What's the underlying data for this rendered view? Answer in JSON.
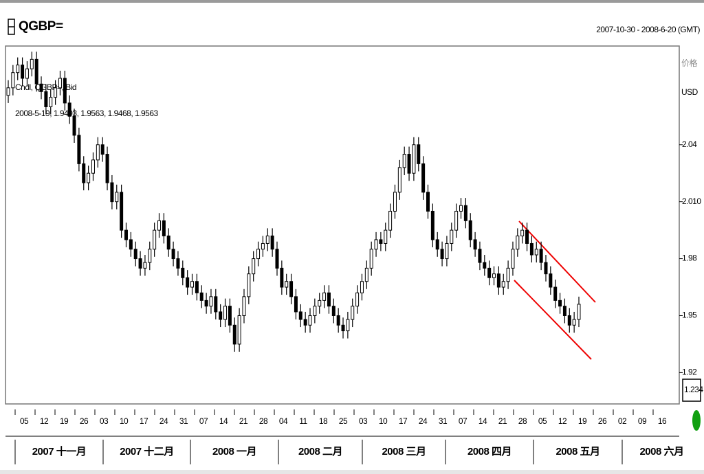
{
  "chart_data": {
    "type": "candlestick",
    "title": "QGBP=",
    "date_range": "2007-10-30 - 2008-6-20 (GMT)",
    "y_axis_label": "价格",
    "y_axis_unit": "USD",
    "scale_box": "1.234",
    "legend": [
      "Cndl, QGBP=, Bid",
      "2008-5-19, 1.9493, 1.9563, 1.9468, 1.9563"
    ],
    "ylim": [
      1.9035,
      2.092
    ],
    "yticks": [
      2.04,
      {
        "value": 2.01,
        "label": "2.010"
      },
      1.98,
      1.95,
      1.92
    ],
    "x_days": [
      "05",
      "12",
      "19",
      "26",
      "03",
      "10",
      "17",
      "24",
      "31",
      "07",
      "14",
      "21",
      "28",
      "04",
      "11",
      "18",
      "25",
      "03",
      "10",
      "17",
      "24",
      "31",
      "07",
      "14",
      "21",
      "28",
      "05",
      "12",
      "19",
      "26",
      "02",
      "09",
      "16"
    ],
    "x_months": [
      "2007 十一月",
      "2007 十二月",
      "2008 一月",
      "2008 二月",
      "2008 三月",
      "2008 四月",
      "2008 五月",
      "2008 六月"
    ],
    "candles": [
      [
        2.066,
        2.074,
        2.062,
        2.07
      ],
      [
        2.07,
        2.082,
        2.066,
        2.078
      ],
      [
        2.078,
        2.086,
        2.074,
        2.082
      ],
      [
        2.082,
        2.086,
        2.071,
        2.075
      ],
      [
        2.075,
        2.084,
        2.071,
        2.08
      ],
      [
        2.08,
        2.089,
        2.076,
        2.085
      ],
      [
        2.085,
        2.089,
        2.068,
        2.072
      ],
      [
        2.072,
        2.076,
        2.064,
        2.068
      ],
      [
        2.068,
        2.072,
        2.056,
        2.06
      ],
      [
        2.06,
        2.069,
        2.056,
        2.065
      ],
      [
        2.065,
        2.074,
        2.061,
        2.07
      ],
      [
        2.07,
        2.079,
        2.066,
        2.075
      ],
      [
        2.075,
        2.079,
        2.058,
        2.062
      ],
      [
        2.062,
        2.066,
        2.051,
        2.055
      ],
      [
        2.055,
        2.059,
        2.041,
        2.045
      ],
      [
        2.045,
        2.049,
        2.026,
        2.03
      ],
      [
        2.03,
        2.034,
        2.016,
        2.02
      ],
      [
        2.02,
        2.029,
        2.016,
        2.025
      ],
      [
        2.025,
        2.036,
        2.021,
        2.032
      ],
      [
        2.032,
        2.044,
        2.028,
        2.04
      ],
      [
        2.04,
        2.044,
        2.031,
        2.035
      ],
      [
        2.035,
        2.039,
        2.016,
        2.02
      ],
      [
        2.02,
        2.024,
        2.006,
        2.01
      ],
      [
        2.01,
        2.019,
        2.006,
        2.015
      ],
      [
        2.015,
        2.019,
        1.991,
        1.995
      ],
      [
        1.995,
        1.999,
        1.986,
        1.99
      ],
      [
        1.99,
        1.994,
        1.981,
        1.985
      ],
      [
        1.985,
        1.989,
        1.976,
        1.98
      ],
      [
        1.98,
        1.984,
        1.971,
        1.975
      ],
      [
        1.975,
        1.982,
        1.971,
        1.978
      ],
      [
        1.978,
        1.989,
        1.974,
        1.985
      ],
      [
        1.985,
        1.999,
        1.981,
        1.995
      ],
      [
        1.995,
        2.004,
        1.991,
        2.0
      ],
      [
        2.0,
        2.004,
        1.988,
        1.992
      ],
      [
        1.992,
        1.996,
        1.981,
        1.985
      ],
      [
        1.985,
        1.989,
        1.976,
        1.98
      ],
      [
        1.98,
        1.984,
        1.971,
        1.975
      ],
      [
        1.975,
        1.979,
        1.966,
        1.97
      ],
      [
        1.97,
        1.974,
        1.961,
        1.965
      ],
      [
        1.965,
        1.972,
        1.961,
        1.968
      ],
      [
        1.968,
        1.972,
        1.958,
        1.962
      ],
      [
        1.962,
        1.966,
        1.954,
        1.958
      ],
      [
        1.958,
        1.962,
        1.951,
        1.955
      ],
      [
        1.955,
        1.964,
        1.951,
        1.96
      ],
      [
        1.96,
        1.964,
        1.948,
        1.952
      ],
      [
        1.952,
        1.956,
        1.944,
        1.948
      ],
      [
        1.948,
        1.959,
        1.944,
        1.955
      ],
      [
        1.955,
        1.959,
        1.941,
        1.945
      ],
      [
        1.945,
        1.949,
        1.931,
        1.935
      ],
      [
        1.935,
        1.954,
        1.931,
        1.95
      ],
      [
        1.95,
        1.964,
        1.946,
        1.96
      ],
      [
        1.96,
        1.976,
        1.956,
        1.972
      ],
      [
        1.972,
        1.984,
        1.968,
        1.98
      ],
      [
        1.98,
        1.989,
        1.976,
        1.985
      ],
      [
        1.985,
        1.992,
        1.981,
        1.988
      ],
      [
        1.988,
        1.996,
        1.984,
        1.992
      ],
      [
        1.992,
        1.996,
        1.981,
        1.985
      ],
      [
        1.985,
        1.989,
        1.971,
        1.975
      ],
      [
        1.975,
        1.979,
        1.961,
        1.965
      ],
      [
        1.965,
        1.972,
        1.961,
        1.968
      ],
      [
        1.968,
        1.972,
        1.956,
        1.96
      ],
      [
        1.96,
        1.964,
        1.948,
        1.952
      ],
      [
        1.952,
        1.956,
        1.944,
        1.948
      ],
      [
        1.948,
        1.952,
        1.941,
        1.945
      ],
      [
        1.945,
        1.954,
        1.941,
        1.95
      ],
      [
        1.95,
        1.959,
        1.946,
        1.955
      ],
      [
        1.955,
        1.962,
        1.951,
        1.958
      ],
      [
        1.958,
        1.966,
        1.954,
        1.962
      ],
      [
        1.962,
        1.966,
        1.951,
        1.955
      ],
      [
        1.955,
        1.959,
        1.946,
        1.95
      ],
      [
        1.95,
        1.954,
        1.941,
        1.945
      ],
      [
        1.945,
        1.949,
        1.938,
        1.942
      ],
      [
        1.942,
        1.952,
        1.938,
        1.948
      ],
      [
        1.948,
        1.959,
        1.944,
        1.955
      ],
      [
        1.955,
        1.966,
        1.951,
        1.962
      ],
      [
        1.962,
        1.972,
        1.958,
        1.968
      ],
      [
        1.968,
        1.979,
        1.964,
        1.975
      ],
      [
        1.975,
        1.989,
        1.971,
        1.985
      ],
      [
        1.985,
        1.994,
        1.981,
        1.99
      ],
      [
        1.99,
        1.994,
        1.984,
        1.988
      ],
      [
        1.988,
        1.999,
        1.984,
        1.995
      ],
      [
        1.995,
        2.009,
        1.991,
        2.005
      ],
      [
        2.005,
        2.019,
        2.001,
        2.015
      ],
      [
        2.015,
        2.032,
        2.011,
        2.028
      ],
      [
        2.028,
        2.039,
        2.024,
        2.035
      ],
      [
        2.035,
        2.039,
        2.021,
        2.025
      ],
      [
        2.025,
        2.044,
        2.021,
        2.04
      ],
      [
        2.04,
        2.044,
        2.026,
        2.03
      ],
      [
        2.03,
        2.034,
        2.011,
        2.015
      ],
      [
        2.015,
        2.019,
        2.001,
        2.005
      ],
      [
        2.005,
        2.009,
        1.986,
        1.99
      ],
      [
        1.99,
        1.994,
        1.981,
        1.985
      ],
      [
        1.985,
        1.989,
        1.976,
        1.98
      ],
      [
        1.98,
        1.992,
        1.976,
        1.988
      ],
      [
        1.988,
        1.999,
        1.984,
        1.995
      ],
      [
        1.995,
        2.009,
        1.991,
        2.005
      ],
      [
        2.005,
        2.012,
        2.001,
        2.008
      ],
      [
        2.008,
        2.012,
        1.996,
        2.0
      ],
      [
        2.0,
        2.004,
        1.986,
        1.99
      ],
      [
        1.99,
        1.994,
        1.981,
        1.985
      ],
      [
        1.985,
        1.989,
        1.974,
        1.978
      ],
      [
        1.978,
        1.982,
        1.971,
        1.975
      ],
      [
        1.975,
        1.979,
        1.966,
        1.97
      ],
      [
        1.97,
        1.976,
        1.966,
        1.972
      ],
      [
        1.972,
        1.976,
        1.961,
        1.965
      ],
      [
        1.965,
        1.972,
        1.961,
        1.968
      ],
      [
        1.968,
        1.979,
        1.964,
        1.975
      ],
      [
        1.975,
        1.989,
        1.971,
        1.985
      ],
      [
        1.985,
        1.996,
        1.981,
        1.992
      ],
      [
        1.992,
        1.999,
        1.988,
        1.995
      ],
      [
        1.995,
        1.999,
        1.984,
        1.988
      ],
      [
        1.988,
        1.992,
        1.978,
        1.982
      ],
      [
        1.982,
        1.989,
        1.978,
        1.985
      ],
      [
        1.985,
        1.989,
        1.974,
        1.978
      ],
      [
        1.978,
        1.982,
        1.968,
        1.972
      ],
      [
        1.972,
        1.976,
        1.961,
        1.965
      ],
      [
        1.965,
        1.969,
        1.954,
        1.958
      ],
      [
        1.958,
        1.962,
        1.951,
        1.955
      ],
      [
        1.955,
        1.959,
        1.946,
        1.95
      ],
      [
        1.95,
        1.954,
        1.941,
        1.945
      ],
      [
        1.945,
        1.952,
        1.941,
        1.948
      ],
      [
        1.948,
        1.96,
        1.944,
        1.956
      ]
    ]
  }
}
